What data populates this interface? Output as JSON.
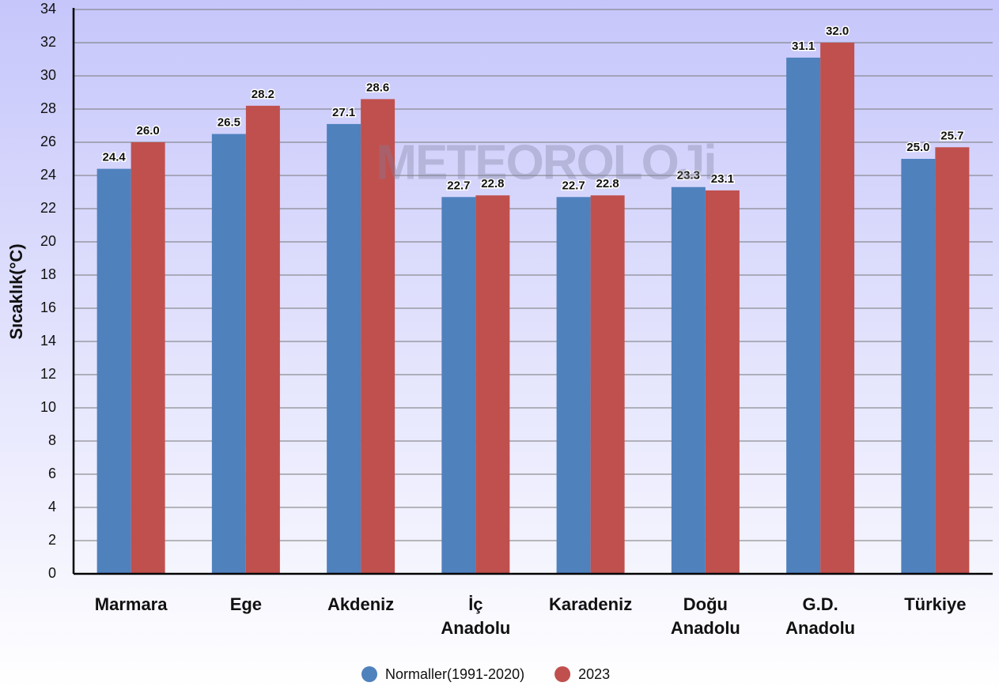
{
  "chart_data": {
    "type": "bar",
    "y_label": "Sıcaklık(°C)",
    "watermark": "METEOROLOJi",
    "categories": [
      "Marmara",
      "Ege",
      "Akdeniz",
      "İç\nAnadolu",
      "Karadeniz",
      "Doğu\nAnadolu",
      "G.D.\nAnadolu",
      "Türkiye"
    ],
    "series": [
      {
        "name": "Normaller(1991-2020)",
        "color": "#4f81bd",
        "values": [
          24.4,
          26.5,
          27.1,
          22.7,
          22.7,
          23.3,
          31.1,
          25.0
        ],
        "value_labels": [
          "24.4",
          "26.5",
          "27.1",
          "22.7",
          "22.7",
          "23.3",
          "31.1",
          "25.0"
        ]
      },
      {
        "name": "2023",
        "color": "#c0504d",
        "values": [
          26.0,
          28.2,
          28.6,
          22.8,
          22.8,
          23.1,
          32.0,
          25.7
        ],
        "value_labels": [
          "26.0",
          "28.2",
          "28.6",
          "22.8",
          "22.8",
          "23.1",
          "32.0",
          "25.7"
        ]
      }
    ],
    "ylim": [
      0,
      34
    ],
    "yticks": [
      0,
      2,
      4,
      6,
      8,
      10,
      12,
      14,
      16,
      18,
      20,
      22,
      24,
      26,
      28,
      30,
      32,
      34
    ],
    "grid": true,
    "legend": "bottom"
  }
}
